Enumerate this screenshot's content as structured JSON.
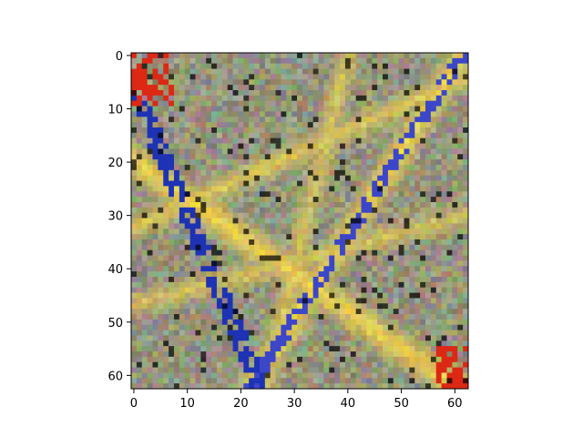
{
  "chart_data": {
    "type": "heatmap",
    "colormap": "rgb",
    "interpolation": "nearest",
    "origin": "upper",
    "width": 63,
    "height": 63,
    "xlim": [
      -0.5,
      62.5
    ],
    "ylim": [
      62.5,
      -0.5
    ],
    "x_ticks": [
      0,
      10,
      20,
      30,
      40,
      50,
      60
    ],
    "y_ticks": [
      0,
      10,
      20,
      30,
      40,
      50,
      60
    ],
    "x_tick_labels": [
      "0",
      "10",
      "20",
      "30",
      "40",
      "50",
      "60"
    ],
    "y_tick_labels": [
      "0",
      "10",
      "20",
      "30",
      "40",
      "50",
      "60"
    ],
    "grid": false,
    "title": "",
    "xlabel": "",
    "ylabel": ""
  }
}
